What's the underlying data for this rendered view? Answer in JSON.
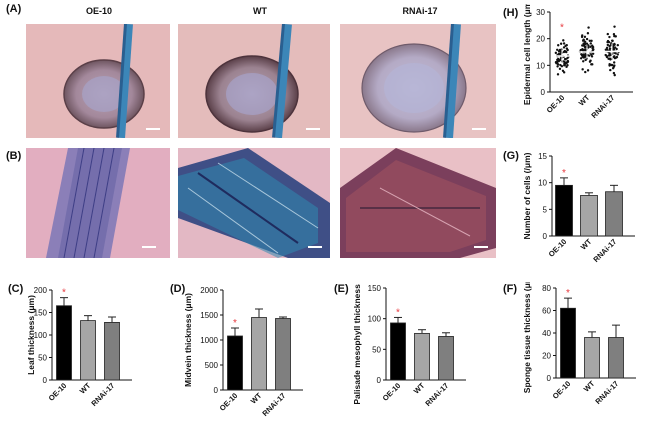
{
  "panels": {
    "A": "(A)",
    "B": "(B)",
    "C": "(C)",
    "D": "(D)",
    "E": "(E)",
    "F": "(F)",
    "G": "(G)",
    "H": "(H)"
  },
  "columns": [
    "OE-10",
    "WT",
    "RNAi-17"
  ],
  "colors": {
    "oe": "#000000",
    "wt": "#a6a6a6",
    "rnai": "#7f7f7f",
    "star": "#e8383d"
  },
  "chart_data": [
    {
      "id": "C",
      "type": "bar",
      "categories": [
        "OE-10",
        "WT",
        "RNAi-17"
      ],
      "values": [
        165,
        132,
        128
      ],
      "errors": [
        18,
        11,
        12
      ],
      "ylabel": "Leaf thickness (μm)",
      "ylim": [
        0,
        200
      ],
      "yticks": [
        "0",
        "50",
        "100",
        "150",
        "200"
      ],
      "significant": [
        "*",
        "",
        ""
      ]
    },
    {
      "id": "D",
      "type": "bar",
      "categories": [
        "OE-10",
        "WT",
        "RNAi-17"
      ],
      "values": [
        1080,
        1450,
        1430
      ],
      "errors": [
        160,
        170,
        30
      ],
      "ylabel": "Midvein thickness (μm)",
      "ylim": [
        0,
        2000
      ],
      "yticks": [
        "0",
        "500",
        "1000",
        "1500",
        "2000"
      ],
      "significant": [
        "*",
        "",
        ""
      ]
    },
    {
      "id": "E",
      "type": "bar",
      "categories": [
        "OE-10",
        "WT",
        "RNAi-17"
      ],
      "values": [
        93,
        76,
        71
      ],
      "errors": [
        9,
        6,
        6
      ],
      "ylabel": "Palisade mesophyll thickness (μm)",
      "ylim": [
        0,
        150
      ],
      "yticks": [
        "0",
        "50",
        "100",
        "150"
      ],
      "significant": [
        "*",
        "",
        ""
      ]
    },
    {
      "id": "F",
      "type": "bar",
      "categories": [
        "OE-10",
        "WT",
        "RNAi-17"
      ],
      "values": [
        62,
        36,
        36
      ],
      "errors": [
        9,
        5,
        11
      ],
      "ylabel": "Sponge tissue thickness (μm)",
      "ylim": [
        0,
        80
      ],
      "yticks": [
        "0",
        "20",
        "40",
        "60",
        "80"
      ],
      "significant": [
        "*",
        "",
        ""
      ]
    },
    {
      "id": "G",
      "type": "bar",
      "categories": [
        "OE-10",
        "WT",
        "RNAi-17"
      ],
      "values": [
        9.5,
        7.6,
        8.3
      ],
      "errors": [
        1.4,
        0.5,
        1.2
      ],
      "ylabel": "Number of cells (/μm)",
      "ylim": [
        0,
        15
      ],
      "yticks": [
        "0",
        "5",
        "10",
        "15"
      ],
      "significant": [
        "*",
        "",
        ""
      ]
    },
    {
      "id": "H",
      "type": "scatter",
      "categories": [
        "OE-10",
        "WT",
        "RNAi-17"
      ],
      "means": [
        13.5,
        15.0,
        15.2
      ],
      "errors": [
        2.5,
        2.5,
        3.0
      ],
      "ranges": [
        [
          5,
          22
        ],
        [
          6,
          26
        ],
        [
          5,
          25
        ]
      ],
      "ylabel": "Epidermal cell length (μm)",
      "ylim": [
        0,
        30
      ],
      "yticks": [
        "0",
        "10",
        "20",
        "30"
      ],
      "significant": [
        "*",
        "",
        ""
      ]
    }
  ]
}
